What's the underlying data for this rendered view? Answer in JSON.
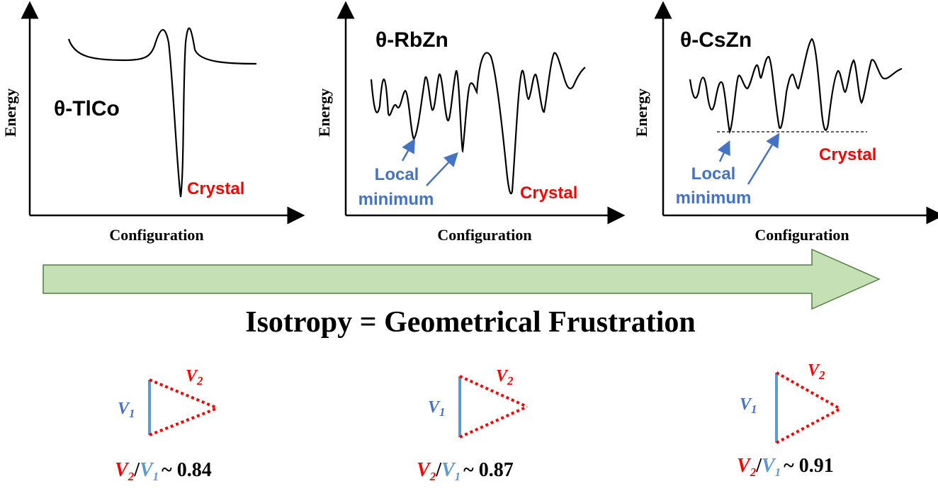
{
  "colors": {
    "accent_red": "#ff0000",
    "accent_blue": "#4472c4",
    "bond_blue": "#5b9bd5",
    "arrow_fill": "#c5e0b4",
    "arrow_stroke": "#507e3e"
  },
  "panels": [
    {
      "title": "θ-TlCo",
      "ylabel": "Energy",
      "xlabel": "Configuration",
      "crystal_label": "Crystal",
      "local_min_line1": "",
      "local_min_line2": ""
    },
    {
      "title": "θ-RbZn",
      "ylabel": "Energy",
      "xlabel": "Configuration",
      "crystal_label": "Crystal",
      "local_min_line1": "Local",
      "local_min_line2": "minimum"
    },
    {
      "title": "θ-CsZn",
      "ylabel": "Energy",
      "xlabel": "Configuration",
      "crystal_label": "Crystal",
      "local_min_line1": "Local",
      "local_min_line2": "minimum"
    }
  ],
  "main_caption": "Isotropy = Geometrical Frustration",
  "triangles": [
    {
      "v1": "V",
      "v1_sub": "1",
      "v2": "V",
      "v2_sub": "2",
      "ratio_value": "~ 0.84"
    },
    {
      "v1": "V",
      "v1_sub": "1",
      "v2": "V",
      "v2_sub": "2",
      "ratio_value": "~ 0.87"
    },
    {
      "v1": "V",
      "v1_sub": "1",
      "v2": "V",
      "v2_sub": "2",
      "ratio_value": "~ 0.91"
    }
  ]
}
